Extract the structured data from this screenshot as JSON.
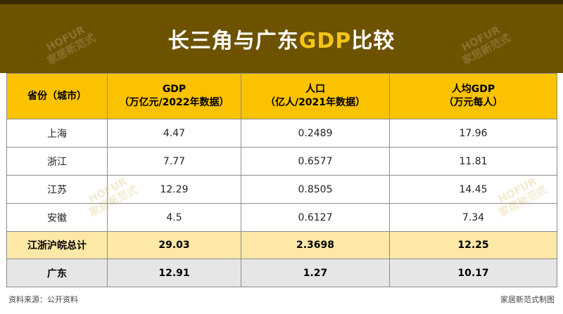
{
  "title": {
    "part1": "长三角与广东",
    "part2": "GDP",
    "part3": "比较"
  },
  "watermark": {
    "brand": "HOFUR",
    "sub": "家居新范式"
  },
  "table": {
    "headers": [
      {
        "line1": "省份（城市）",
        "line2": ""
      },
      {
        "line1": "GDP",
        "line2": "（万亿元/2022年数据）"
      },
      {
        "line1": "人口",
        "line2": "（亿人/2021年数据）"
      },
      {
        "line1": "人均GDP",
        "line2": "（万元每人）"
      }
    ],
    "rows": [
      {
        "name": "上海",
        "gdp": "4.47",
        "pop": "0.2489",
        "per": "17.96"
      },
      {
        "name": "浙江",
        "gdp": "7.77",
        "pop": "0.6577",
        "per": "11.81"
      },
      {
        "name": "江苏",
        "gdp": "12.29",
        "pop": "0.8505",
        "per": "14.45"
      },
      {
        "name": "安徽",
        "gdp": "4.5",
        "pop": "0.6127",
        "per": "7.34"
      }
    ],
    "total": {
      "name": "江浙沪皖总计",
      "gdp": "29.03",
      "pop": "2.3698",
      "per": "12.25"
    },
    "guangdong": {
      "name": "广东",
      "gdp": "12.91",
      "pop": "1.27",
      "per": "10.17"
    }
  },
  "footer": {
    "source": "资料来源：公开资料",
    "credit": "家居新范式制图"
  },
  "colors": {
    "title_bg": "#6d5200",
    "title_accent": "#f5c518",
    "header_bg": "#fac200",
    "total_bg": "#fde8a6",
    "gd_bg": "#e6e6e6"
  }
}
